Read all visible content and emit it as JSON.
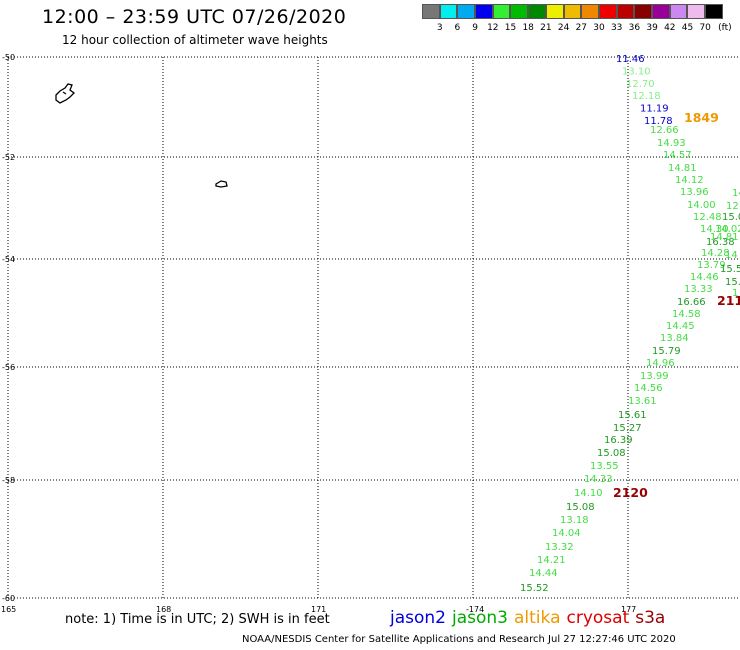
{
  "title": "12:00 – 23:59 UTC 07/26/2020",
  "subtitle": "12 hour collection of altimeter wave heights",
  "colorbar": {
    "colors": [
      "#777777",
      "#00eeee",
      "#00aaee",
      "#0000ee",
      "#33ee33",
      "#00bb00",
      "#008800",
      "#eeee00",
      "#eebb00",
      "#ee8800",
      "#ee0000",
      "#bb0000",
      "#880000",
      "#990099",
      "#cc88ee",
      "#eebbee",
      "#000000"
    ],
    "labels": [
      "3",
      "6",
      "9",
      "12",
      "15",
      "18",
      "21",
      "24",
      "27",
      "30",
      "33",
      "36",
      "39",
      "42",
      "45",
      "70",
      "(ft)"
    ]
  },
  "axes": {
    "lat_labels": [
      "-50",
      "-52",
      "-54",
      "-56",
      "-58",
      "-60"
    ],
    "lon_labels": [
      "165",
      "168",
      "171",
      "-174",
      "177"
    ]
  },
  "tracks": [
    {
      "satellite": "jason2",
      "points": [
        {
          "value": "11.46",
          "color": "#0000cc"
        },
        {
          "value": "13.10",
          "color": "#88ee88"
        },
        {
          "value": "12.70",
          "color": "#88ee88"
        },
        {
          "value": "12.18",
          "color": "#88ee88"
        },
        {
          "value": "11.19",
          "color": "#0000cc"
        },
        {
          "value": "11.78",
          "color": "#0000cc"
        }
      ]
    },
    {
      "satellite": "jason3",
      "points": [
        {
          "value": "12.66",
          "color": "#44dd44"
        },
        {
          "value": "14.93",
          "color": "#44dd44"
        },
        {
          "value": "14.57",
          "color": "#44dd44"
        },
        {
          "value": "14.81",
          "color": "#44dd44"
        },
        {
          "value": "14.12",
          "color": "#44dd44"
        },
        {
          "value": "13.96",
          "color": "#44dd44"
        },
        {
          "value": "14.00",
          "color": "#44dd44"
        },
        {
          "value": "12.48",
          "color": "#44dd44"
        },
        {
          "value": "14.30",
          "color": "#44dd44"
        },
        {
          "value": "16.38",
          "color": "#229922"
        },
        {
          "value": "14.28",
          "color": "#44dd44"
        },
        {
          "value": "13.79",
          "color": "#44dd44"
        },
        {
          "value": "14.46",
          "color": "#44dd44"
        },
        {
          "value": "13.33",
          "color": "#44dd44"
        },
        {
          "value": "16.66",
          "color": "#229922"
        },
        {
          "value": "14.58",
          "color": "#44dd44"
        },
        {
          "value": "14.45",
          "color": "#44dd44"
        },
        {
          "value": "13.84",
          "color": "#44dd44"
        },
        {
          "value": "15.79",
          "color": "#229922"
        },
        {
          "value": "14.96",
          "color": "#44dd44"
        },
        {
          "value": "13.99",
          "color": "#44dd44"
        },
        {
          "value": "14.56",
          "color": "#44dd44"
        },
        {
          "value": "13.61",
          "color": "#44dd44"
        },
        {
          "value": "15.61",
          "color": "#229922"
        },
        {
          "value": "15.27",
          "color": "#229922"
        },
        {
          "value": "16.39",
          "color": "#229922"
        },
        {
          "value": "15.08",
          "color": "#229922"
        },
        {
          "value": "13.55",
          "color": "#44dd44"
        },
        {
          "value": "14.33",
          "color": "#44dd44"
        },
        {
          "value": "14.10",
          "color": "#44dd44"
        },
        {
          "value": "15.08",
          "color": "#229922"
        },
        {
          "value": "13.18",
          "color": "#44dd44"
        },
        {
          "value": "14.04",
          "color": "#44dd44"
        },
        {
          "value": "13.32",
          "color": "#44dd44"
        },
        {
          "value": "14.21",
          "color": "#44dd44"
        },
        {
          "value": "14.44",
          "color": "#44dd44"
        },
        {
          "value": "15.52",
          "color": "#229922"
        }
      ]
    },
    {
      "satellite": "edge",
      "points": [
        {
          "value": "14",
          "color": "#44dd44"
        },
        {
          "value": "12",
          "color": "#44dd44"
        },
        {
          "value": "15.0",
          "color": "#229922"
        },
        {
          "value": "14.02",
          "color": "#44dd44"
        },
        {
          "value": "14.81",
          "color": "#44dd44"
        },
        {
          "value": "14",
          "color": "#44dd44"
        },
        {
          "value": "15.5",
          "color": "#229922"
        },
        {
          "value": "15.",
          "color": "#229922"
        },
        {
          "value": "1",
          "color": "#44dd44"
        }
      ]
    }
  ],
  "time_labels": [
    {
      "text": "1849",
      "color": "#ee9900"
    },
    {
      "text": "211",
      "color": "#990000"
    },
    {
      "text": "2120",
      "color": "#990000"
    }
  ],
  "note": "note: 1) Time is in UTC; 2) SWH is in feet",
  "legend": [
    {
      "name": "jason2",
      "color": "#0000dd"
    },
    {
      "name": "jason3",
      "color": "#00aa00"
    },
    {
      "name": "altika",
      "color": "#ee9900"
    },
    {
      "name": "cryosat",
      "color": "#dd0000"
    },
    {
      "name": "s3a",
      "color": "#990000"
    }
  ],
  "footer": "NOAA/NESDIS Center for Satellite Applications and Research     Jul 27 12:27:46 UTC 2020"
}
